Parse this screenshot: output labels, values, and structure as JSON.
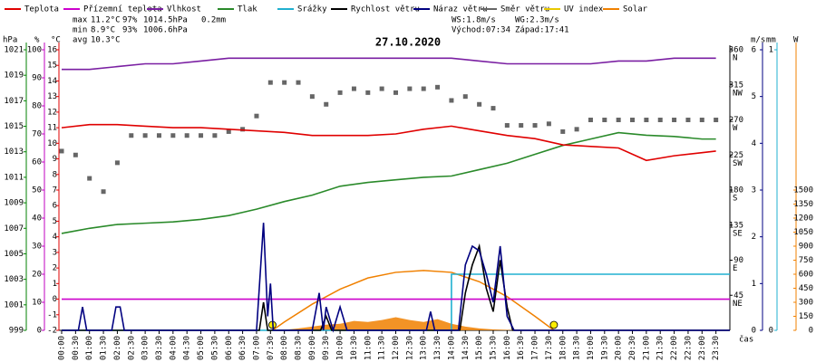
{
  "chart_data": {
    "type": "line",
    "title": "27.10.2020",
    "xlabel": "čas",
    "xlim": [
      0,
      24
    ],
    "xticks": [
      {
        "value": 0,
        "label": "00:00"
      },
      {
        "value": 0.5,
        "label": "00:30"
      },
      {
        "value": 1,
        "label": "01:00"
      },
      {
        "value": 1.5,
        "label": "01:30"
      },
      {
        "value": 2,
        "label": "02:00"
      },
      {
        "value": 2.5,
        "label": "02:30"
      },
      {
        "value": 3,
        "label": "03:00"
      },
      {
        "value": 3.5,
        "label": "03:30"
      },
      {
        "value": 4,
        "label": "04:00"
      },
      {
        "value": 4.5,
        "label": "04:30"
      },
      {
        "value": 5,
        "label": "05:00"
      },
      {
        "value": 5.5,
        "label": "05:30"
      },
      {
        "value": 6,
        "label": "06:00"
      },
      {
        "value": 6.5,
        "label": "06:30"
      },
      {
        "value": 7,
        "label": "07:00"
      },
      {
        "value": 7.5,
        "label": "07:30"
      },
      {
        "value": 8,
        "label": "08:00"
      },
      {
        "value": 8.5,
        "label": "08:30"
      },
      {
        "value": 9,
        "label": "09:00"
      },
      {
        "value": 9.5,
        "label": "09:30"
      },
      {
        "value": 10,
        "label": "10:00"
      },
      {
        "value": 10.5,
        "label": "10:30"
      },
      {
        "value": 11,
        "label": "11:00"
      },
      {
        "value": 11.5,
        "label": "11:30"
      },
      {
        "value": 12,
        "label": "12:00"
      },
      {
        "value": 12.5,
        "label": "12:30"
      },
      {
        "value": 13,
        "label": "13:00"
      },
      {
        "value": 13.5,
        "label": "13:30"
      },
      {
        "value": 14,
        "label": "14:00"
      },
      {
        "value": 14.5,
        "label": "14:30"
      },
      {
        "value": 15,
        "label": "15:00"
      },
      {
        "value": 15.5,
        "label": "15:30"
      },
      {
        "value": 16,
        "label": "16:00"
      },
      {
        "value": 16.5,
        "label": "16:30"
      },
      {
        "value": 17,
        "label": "17:00"
      },
      {
        "value": 17.5,
        "label": "17:30"
      },
      {
        "value": 18,
        "label": "18:00"
      },
      {
        "value": 18.5,
        "label": "18:30"
      },
      {
        "value": 19,
        "label": "19:00"
      },
      {
        "value": 19.5,
        "label": "19:30"
      },
      {
        "value": 20,
        "label": "20:00"
      },
      {
        "value": 20.5,
        "label": "20:30"
      },
      {
        "value": 21,
        "label": "21:00"
      },
      {
        "value": 21.5,
        "label": "21:30"
      },
      {
        "value": 22,
        "label": "22:00"
      },
      {
        "value": 22.5,
        "label": "22:30"
      },
      {
        "value": 23,
        "label": "23:00"
      },
      {
        "value": 23.5,
        "label": "23:30"
      }
    ],
    "axes": {
      "pressure": {
        "label": "hPa",
        "color": "#008000",
        "lim": [
          999,
          1021
        ],
        "ticks": [
          999,
          1001,
          1003,
          1005,
          1007,
          1009,
          1011,
          1013,
          1015,
          1017,
          1019,
          1021
        ]
      },
      "humidity": {
        "label": "%",
        "color": "#c000c0",
        "lim": [
          0,
          100
        ],
        "ticks": [
          0,
          10,
          20,
          30,
          40,
          50,
          60,
          70,
          80,
          90,
          100
        ]
      },
      "temperature": {
        "label": "°C",
        "color": "#e00000",
        "lim": [
          -2,
          16
        ],
        "ticks": [
          -2,
          -1,
          0,
          1,
          2,
          3,
          4,
          5,
          6,
          7,
          8,
          9,
          10,
          11,
          12,
          13,
          14,
          15,
          16
        ]
      },
      "direction": {
        "color": "#000000",
        "lim": [
          0,
          360
        ],
        "ticks": [
          45,
          90,
          135,
          180,
          225,
          270,
          315,
          360
        ],
        "compass": [
          "NE",
          "E",
          "SE",
          "S",
          "SW",
          "W",
          "NW",
          "N"
        ]
      },
      "wind": {
        "label": "m/s",
        "color": "#000080",
        "lim": [
          0,
          6
        ],
        "ticks": [
          0,
          1,
          2,
          3,
          4,
          5,
          6
        ]
      },
      "rain": {
        "label": "mm",
        "color": "#20b0d0",
        "lim": [
          0,
          1
        ],
        "ticks": [
          0,
          1
        ]
      },
      "solar": {
        "label": "W",
        "color": "#f08000",
        "lim": [
          0,
          3000
        ],
        "ticks": [
          0,
          150,
          300,
          450,
          600,
          750,
          900,
          1050,
          1200,
          1350,
          1500
        ]
      }
    },
    "series": [
      {
        "name": "Teplota",
        "color": "#e00000",
        "style": "line",
        "axis": "temperature",
        "x": [
          0,
          1,
          2,
          3,
          4,
          5,
          6,
          7,
          8,
          9,
          10,
          11,
          12,
          13,
          14,
          15,
          16,
          17,
          18,
          19,
          20,
          21,
          22,
          23,
          23.5
        ],
        "values": [
          11,
          11.2,
          11.2,
          11.1,
          11,
          11,
          10.9,
          10.8,
          10.7,
          10.5,
          10.5,
          10.5,
          10.6,
          10.9,
          11.1,
          10.8,
          10.5,
          10.3,
          9.9,
          9.8,
          9.7,
          8.9,
          9.2,
          9.4,
          9.5
        ]
      },
      {
        "name": "Přízemní teplota",
        "color": "#cc00cc",
        "style": "line",
        "axis": "temperature",
        "x": [
          0,
          24
        ],
        "values": [
          0,
          0
        ]
      },
      {
        "name": "Vlhkost",
        "color": "#7a1fa2",
        "style": "line",
        "axis": "humidity",
        "x": [
          0,
          1,
          2,
          3,
          4,
          5,
          6,
          7,
          8,
          9,
          10,
          11,
          12,
          13,
          14,
          15,
          16,
          17,
          18,
          19,
          20,
          21,
          22,
          23,
          23.5
        ],
        "values": [
          93,
          93,
          94,
          95,
          95,
          96,
          97,
          97,
          97,
          97,
          97,
          97,
          97,
          97,
          97,
          96,
          95,
          95,
          95,
          95,
          96,
          96,
          97,
          97,
          97
        ]
      },
      {
        "name": "Tlak",
        "color": "#2a8a2a",
        "style": "line",
        "axis": "pressure",
        "x": [
          0,
          1,
          2,
          3,
          4,
          5,
          6,
          7,
          8,
          9,
          10,
          11,
          12,
          13,
          14,
          15,
          16,
          17,
          18,
          19,
          20,
          21,
          22,
          23,
          23.5
        ],
        "values": [
          1006.6,
          1007.0,
          1007.3,
          1007.4,
          1007.5,
          1007.7,
          1008.0,
          1008.5,
          1009.1,
          1009.6,
          1010.3,
          1010.6,
          1010.8,
          1011.0,
          1011.1,
          1011.6,
          1012.1,
          1012.8,
          1013.5,
          1014.0,
          1014.5,
          1014.3,
          1014.2,
          1014.0,
          1014.0
        ]
      },
      {
        "name": "Srážky",
        "color": "#20b0d0",
        "style": "line",
        "axis": "rain",
        "x": [
          0,
          14,
          14,
          24
        ],
        "values": [
          0,
          0,
          0.2,
          0.2
        ]
      },
      {
        "name": "Rychlost větru",
        "color": "#000000",
        "style": "line",
        "axis": "wind",
        "x": [
          0,
          7.1,
          7.25,
          7.4,
          9.3,
          9.5,
          9.7,
          14.3,
          14.5,
          14.75,
          15,
          15.25,
          15.5,
          15.75,
          16,
          16.2,
          24
        ],
        "values": [
          0,
          0,
          0.6,
          0,
          0,
          0.3,
          0,
          0,
          0.8,
          1.4,
          1.8,
          0.9,
          0.4,
          1.5,
          0.5,
          0,
          0
        ]
      },
      {
        "name": "Náraz větru",
        "color": "#000080",
        "style": "line",
        "axis": "wind",
        "x": [
          0,
          0.6,
          0.75,
          0.9,
          1.8,
          1.95,
          2.1,
          2.25,
          7,
          7.25,
          7.4,
          7.5,
          7.6,
          9,
          9.25,
          9.4,
          9.5,
          9.75,
          10,
          10.25,
          13.1,
          13.25,
          13.4,
          14.25,
          14.5,
          14.75,
          15,
          15.25,
          15.5,
          15.75,
          16,
          16.25,
          24
        ],
        "values": [
          0,
          0,
          0.5,
          0,
          0,
          0.5,
          0.5,
          0,
          0,
          2.3,
          0.3,
          1.0,
          0,
          0,
          0.8,
          0,
          0.5,
          0,
          0.5,
          0,
          0,
          0.4,
          0,
          0,
          1.4,
          1.8,
          1.7,
          1.2,
          0.6,
          1.8,
          0.3,
          0,
          0
        ]
      },
      {
        "name": "Směr větru",
        "color": "#666666",
        "style": "scatter",
        "axis": "direction",
        "x": [
          0,
          0.5,
          1,
          1.5,
          2,
          2.5,
          3,
          3.5,
          4,
          4.5,
          5,
          5.5,
          6,
          6.5,
          7,
          7.5,
          8,
          8.5,
          9,
          9.5,
          10,
          10.5,
          11,
          11.5,
          12,
          12.5,
          13,
          13.5,
          14,
          14.5,
          15,
          15.5,
          16,
          16.5,
          17,
          17.5,
          18,
          18.5,
          19,
          19.5,
          20,
          20.5,
          21,
          21.5,
          22,
          22.5,
          23,
          23.5
        ],
        "values": [
          230,
          225,
          195,
          178,
          215,
          250,
          250,
          250,
          250,
          250,
          250,
          250,
          255,
          258,
          275,
          318,
          318,
          318,
          300,
          290,
          305,
          310,
          305,
          310,
          305,
          310,
          310,
          312,
          295,
          300,
          290,
          285,
          263,
          263,
          263,
          265,
          255,
          258,
          270,
          270,
          270,
          270,
          270,
          270,
          270,
          270,
          270,
          270
        ]
      },
      {
        "name": "UV index",
        "color": "#e8c800",
        "style": "line",
        "axis": "solar",
        "colored_label": true,
        "x": [],
        "values": []
      },
      {
        "name": "Solar",
        "color": "#f08000",
        "style": "area",
        "axis": "solar",
        "colored_label": true,
        "x": [
          7.57,
          8,
          8.5,
          9,
          9.5,
          10,
          10.5,
          11,
          11.5,
          12,
          12.5,
          13,
          13.5,
          14,
          14.5,
          15,
          15.5,
          16,
          16.5
        ],
        "values": [
          0,
          5,
          20,
          40,
          60,
          70,
          100,
          90,
          110,
          140,
          110,
          90,
          120,
          70,
          40,
          20,
          10,
          5,
          0
        ]
      }
    ],
    "solar_clear_sky": {
      "color": "#f08000",
      "marker_color": "#ffee00",
      "axis": "solar",
      "x": [
        7.57,
        8,
        9,
        10,
        11,
        12,
        13,
        14,
        15,
        16,
        17,
        17.68
      ],
      "values": [
        0,
        90,
        280,
        440,
        560,
        620,
        640,
        620,
        520,
        360,
        150,
        0
      ]
    },
    "stats": [
      {
        "label": "max",
        "values": [
          {
            "text": "11.2°C",
            "color": "#e00000"
          },
          {
            "text": "97%",
            "color": "#c000c0"
          },
          {
            "text": "1014.5hPa",
            "color": "#000080"
          },
          {
            "text": "0.2mm",
            "color": "#20b0d0"
          }
        ]
      },
      {
        "label": "min",
        "values": [
          {
            "text": "8.9°C",
            "color": "#e00000"
          },
          {
            "text": "93%",
            "color": "#c000c0"
          },
          {
            "text": "1006.6hPa",
            "color": "#000080"
          }
        ]
      },
      {
        "label": "avg",
        "values": [
          {
            "text": "10.3°C",
            "color": "#000000"
          }
        ]
      }
    ],
    "wind_stats": [
      "WS:1.8m/s",
      "WG:2.3m/s"
    ],
    "sun": [
      "Východ:07:34",
      "Západ:17:41"
    ]
  }
}
